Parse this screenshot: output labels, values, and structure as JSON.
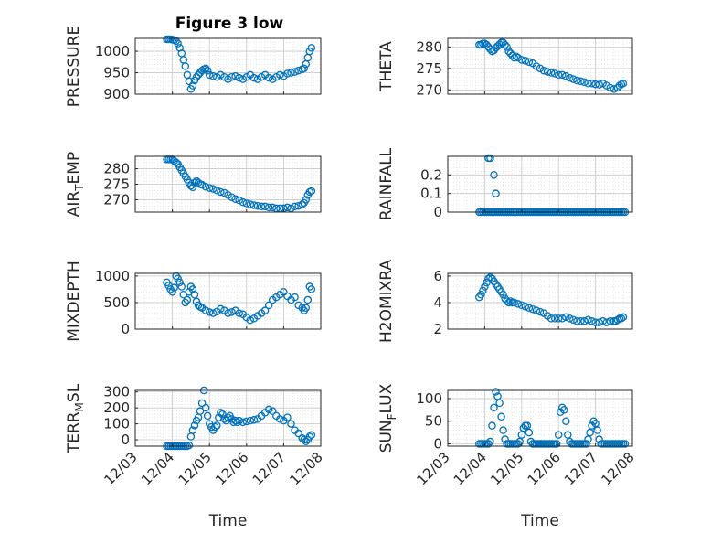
{
  "figure": {
    "title": "Figure 3 low",
    "marker_color": "#0072bd",
    "grid": true,
    "minor_grid": true,
    "x_tick_labels": [
      "12/03",
      "12/04",
      "12/05",
      "12/06",
      "12/07",
      "12/08"
    ],
    "x_axis_label": "Time"
  },
  "chart_data": [
    {
      "type": "scatter",
      "id": "pressure",
      "ylabel": "PRESSURE",
      "xlim": [
        3,
        8
      ],
      "ylim": [
        900,
        1030
      ],
      "yticks": [
        900,
        950,
        1000
      ],
      "ytick_labels": [
        "900",
        "950",
        "1000"
      ],
      "x": [
        3.85,
        3.9,
        3.95,
        4.0,
        4.05,
        4.1,
        4.15,
        4.2,
        4.25,
        4.3,
        4.35,
        4.4,
        4.45,
        4.5,
        4.55,
        4.6,
        4.65,
        4.7,
        4.75,
        4.8,
        4.85,
        4.9,
        4.95,
        5.0,
        5.1,
        5.2,
        5.3,
        5.4,
        5.5,
        5.6,
        5.7,
        5.8,
        5.9,
        6.0,
        6.1,
        6.2,
        6.3,
        6.4,
        6.5,
        6.6,
        6.7,
        6.8,
        6.9,
        7.0,
        7.1,
        7.2,
        7.3,
        7.4,
        7.5,
        7.55,
        7.6,
        7.65,
        7.7,
        7.75
      ],
      "y": [
        1028,
        1028,
        1028,
        1027,
        1026,
        1024,
        1018,
        1008,
        995,
        980,
        965,
        945,
        930,
        912,
        920,
        932,
        940,
        945,
        950,
        955,
        958,
        960,
        955,
        945,
        942,
        940,
        945,
        940,
        935,
        940,
        942,
        938,
        935,
        940,
        945,
        938,
        935,
        940,
        945,
        938,
        935,
        940,
        945,
        942,
        948,
        950,
        952,
        955,
        958,
        960,
        970,
        985,
        1000,
        1008
      ]
    },
    {
      "type": "scatter",
      "id": "theta",
      "ylabel": "THETA",
      "xlim": [
        3,
        8
      ],
      "ylim": [
        269,
        282
      ],
      "yticks": [
        270,
        275,
        280
      ],
      "ytick_labels": [
        "270",
        "275",
        "280"
      ],
      "x": [
        3.85,
        3.9,
        3.95,
        4.0,
        4.05,
        4.1,
        4.15,
        4.2,
        4.25,
        4.3,
        4.35,
        4.4,
        4.45,
        4.5,
        4.55,
        4.6,
        4.65,
        4.7,
        4.75,
        4.8,
        4.85,
        4.9,
        5.0,
        5.1,
        5.2,
        5.3,
        5.4,
        5.5,
        5.6,
        5.7,
        5.8,
        5.9,
        6.0,
        6.1,
        6.2,
        6.3,
        6.4,
        6.5,
        6.6,
        6.7,
        6.8,
        6.9,
        7.0,
        7.1,
        7.2,
        7.3,
        7.4,
        7.5,
        7.6,
        7.65,
        7.7,
        7.75
      ],
      "y": [
        280.5,
        280.5,
        280.8,
        280.8,
        280.5,
        280,
        279.5,
        279,
        279.2,
        279.8,
        280.2,
        280.6,
        281,
        281,
        280.5,
        280,
        279,
        278.5,
        278,
        277.5,
        277.8,
        277.5,
        277,
        276.8,
        276.5,
        276.2,
        275.5,
        275,
        274.5,
        274.2,
        274,
        273.8,
        273.5,
        273.5,
        273.2,
        272.8,
        272.5,
        272.2,
        272,
        271.8,
        271.5,
        271.5,
        271.3,
        271.2,
        271.5,
        271,
        270.5,
        270.2,
        270.5,
        271,
        271.3,
        271.5
      ]
    },
    {
      "type": "scatter",
      "id": "air-temp",
      "ylabel": "AIR",
      "ylabel_sub": "T",
      "ylabel_suffix": "EMP",
      "xlim": [
        3,
        8
      ],
      "ylim": [
        266,
        284
      ],
      "yticks": [
        270,
        275,
        280
      ],
      "ytick_labels": [
        "270",
        "275",
        "280"
      ],
      "x": [
        3.85,
        3.9,
        3.95,
        4.0,
        4.05,
        4.1,
        4.15,
        4.2,
        4.25,
        4.3,
        4.35,
        4.4,
        4.45,
        4.5,
        4.55,
        4.6,
        4.65,
        4.7,
        4.75,
        4.8,
        4.9,
        5.0,
        5.1,
        5.2,
        5.3,
        5.4,
        5.5,
        5.6,
        5.7,
        5.8,
        5.9,
        6.0,
        6.1,
        6.2,
        6.3,
        6.4,
        6.5,
        6.6,
        6.7,
        6.8,
        6.9,
        7.0,
        7.1,
        7.2,
        7.3,
        7.4,
        7.5,
        7.55,
        7.6,
        7.65,
        7.7,
        7.75
      ],
      "y": [
        283,
        283,
        283,
        283,
        282.5,
        282,
        281.5,
        280.5,
        279.5,
        278.5,
        277.5,
        276.5,
        275.5,
        274.5,
        274,
        275.5,
        276,
        275.5,
        275,
        274.8,
        274.2,
        273.8,
        273.5,
        273,
        272.5,
        272.2,
        271.5,
        270.8,
        270.2,
        269.8,
        269.2,
        268.8,
        268.5,
        268.2,
        268,
        267.8,
        267.8,
        267.5,
        267.5,
        267.2,
        267.2,
        267.2,
        267.5,
        267.2,
        267.8,
        268,
        268.5,
        269,
        270,
        271.5,
        272.5,
        272.8
      ]
    },
    {
      "type": "scatter",
      "id": "rainfall",
      "ylabel": "RAINFALL",
      "xlim": [
        3,
        8
      ],
      "ylim": [
        0,
        0.3
      ],
      "yticks": [
        0,
        0.1,
        0.2
      ],
      "ytick_labels": [
        "0",
        "0.1",
        "0.2"
      ],
      "x": [
        3.85,
        3.9,
        3.95,
        4.0,
        4.05,
        4.1,
        4.15,
        4.2,
        4.25,
        4.3,
        4.35,
        4.4,
        4.45,
        4.5,
        4.55,
        4.6,
        4.65,
        4.7,
        4.75,
        4.8,
        4.85,
        4.9,
        4.95,
        5.0,
        5.05,
        5.1,
        5.15,
        5.2,
        5.25,
        5.3,
        5.35,
        5.4,
        5.45,
        5.5,
        5.55,
        5.6,
        5.65,
        5.7,
        5.75,
        5.8,
        5.85,
        5.9,
        5.95,
        6.0,
        6.05,
        6.1,
        6.15,
        6.2,
        6.25,
        6.3,
        6.35,
        6.4,
        6.45,
        6.5,
        6.55,
        6.6,
        6.65,
        6.7,
        6.75,
        6.8,
        6.85,
        6.9,
        6.95,
        7.0,
        7.05,
        7.1,
        7.15,
        7.2,
        7.25,
        7.3,
        7.35,
        7.4,
        7.45,
        7.5,
        7.55,
        7.6,
        7.65,
        7.7,
        7.75,
        7.8,
        4.1,
        4.15,
        4.25,
        4.3
      ],
      "y": [
        0,
        0,
        0,
        0,
        0,
        0,
        0,
        0,
        0,
        0,
        0,
        0,
        0,
        0,
        0,
        0,
        0,
        0,
        0,
        0,
        0,
        0,
        0,
        0,
        0,
        0,
        0,
        0,
        0,
        0,
        0,
        0,
        0,
        0,
        0,
        0,
        0,
        0,
        0,
        0,
        0,
        0,
        0,
        0,
        0,
        0,
        0,
        0,
        0,
        0,
        0,
        0,
        0,
        0,
        0,
        0,
        0,
        0,
        0,
        0,
        0,
        0,
        0,
        0,
        0,
        0,
        0,
        0,
        0,
        0,
        0,
        0,
        0,
        0,
        0,
        0,
        0,
        0,
        0,
        0,
        0.29,
        0.29,
        0.2,
        0.1
      ]
    },
    {
      "type": "scatter",
      "id": "mixdepth",
      "ylabel": "MIXDEPTH",
      "xlim": [
        3,
        8
      ],
      "ylim": [
        0,
        1050
      ],
      "yticks": [
        0,
        500,
        1000
      ],
      "ytick_labels": [
        "0",
        "500",
        "1000"
      ],
      "x": [
        3.85,
        3.9,
        3.95,
        4.0,
        4.05,
        4.1,
        4.15,
        4.2,
        4.25,
        4.3,
        4.35,
        4.4,
        4.45,
        4.5,
        4.55,
        4.6,
        4.65,
        4.7,
        4.75,
        4.8,
        4.9,
        5.0,
        5.1,
        5.2,
        5.3,
        5.4,
        5.5,
        5.6,
        5.7,
        5.8,
        5.9,
        6.0,
        6.1,
        6.2,
        6.3,
        6.4,
        6.5,
        6.6,
        6.7,
        6.8,
        6.9,
        7.0,
        7.1,
        7.2,
        7.3,
        7.4,
        7.5,
        7.55,
        7.6,
        7.65,
        7.7,
        7.75
      ],
      "y": [
        880,
        820,
        750,
        700,
        780,
        1000,
        950,
        880,
        800,
        650,
        500,
        550,
        700,
        800,
        750,
        650,
        520,
        450,
        420,
        400,
        350,
        320,
        300,
        330,
        380,
        350,
        300,
        320,
        350,
        300,
        280,
        220,
        170,
        200,
        250,
        300,
        350,
        450,
        550,
        600,
        650,
        700,
        620,
        550,
        600,
        450,
        400,
        350,
        400,
        550,
        800,
        750
      ]
    },
    {
      "type": "scatter",
      "id": "h2o-mixing-ratio",
      "ylabel": "H2OMIXRA",
      "xlim": [
        3,
        8
      ],
      "ylim": [
        2,
        6.2
      ],
      "yticks": [
        2,
        4,
        6
      ],
      "ytick_labels": [
        "2",
        "4",
        "6"
      ],
      "x": [
        3.85,
        3.9,
        3.95,
        4.0,
        4.05,
        4.1,
        4.15,
        4.2,
        4.25,
        4.3,
        4.35,
        4.4,
        4.45,
        4.5,
        4.55,
        4.6,
        4.65,
        4.7,
        4.75,
        4.8,
        4.9,
        5.0,
        5.1,
        5.2,
        5.3,
        5.4,
        5.5,
        5.6,
        5.7,
        5.8,
        5.9,
        6.0,
        6.1,
        6.2,
        6.3,
        6.4,
        6.5,
        6.6,
        6.7,
        6.8,
        6.9,
        7.0,
        7.1,
        7.2,
        7.3,
        7.4,
        7.5,
        7.55,
        7.6,
        7.65,
        7.7,
        7.75
      ],
      "y": [
        4.4,
        4.6,
        4.9,
        5.2,
        5.5,
        5.8,
        5.9,
        5.8,
        5.6,
        5.4,
        5.2,
        5.0,
        4.8,
        4.6,
        4.3,
        4.1,
        4.0,
        4.1,
        4.0,
        4.0,
        3.9,
        3.8,
        3.7,
        3.6,
        3.5,
        3.4,
        3.3,
        3.2,
        3.0,
        2.8,
        2.8,
        2.8,
        2.8,
        2.9,
        2.8,
        2.7,
        2.6,
        2.6,
        2.6,
        2.7,
        2.6,
        2.5,
        2.5,
        2.6,
        2.5,
        2.6,
        2.6,
        2.6,
        2.7,
        2.8,
        2.8,
        2.9
      ]
    },
    {
      "type": "scatter",
      "id": "terrain-msl",
      "ylabel": "TERR",
      "ylabel_sub": "M",
      "ylabel_suffix": "SL",
      "xlim": [
        3,
        8
      ],
      "ylim": [
        -40,
        310
      ],
      "yticks": [
        0,
        100,
        200,
        300
      ],
      "ytick_labels": [
        "0",
        "100",
        "200",
        "300"
      ],
      "x": [
        3.85,
        3.9,
        3.95,
        4.0,
        4.05,
        4.1,
        4.15,
        4.2,
        4.25,
        4.3,
        4.35,
        4.4,
        4.45,
        4.5,
        4.55,
        4.6,
        4.65,
        4.7,
        4.75,
        4.8,
        4.85,
        4.9,
        4.95,
        5.0,
        5.05,
        5.1,
        5.15,
        5.2,
        5.25,
        5.3,
        5.35,
        5.4,
        5.45,
        5.5,
        5.55,
        5.6,
        5.65,
        5.7,
        5.75,
        5.8,
        5.9,
        6.0,
        6.1,
        6.2,
        6.3,
        6.4,
        6.5,
        6.6,
        6.7,
        6.8,
        6.9,
        7.0,
        7.1,
        7.2,
        7.3,
        7.4,
        7.5,
        7.55,
        7.6,
        7.65,
        7.7,
        7.75
      ],
      "y": [
        -40,
        -40,
        -40,
        -40,
        -40,
        -40,
        -40,
        -40,
        -40,
        -40,
        -40,
        -40,
        -35,
        20,
        60,
        90,
        120,
        140,
        180,
        230,
        310,
        200,
        150,
        100,
        80,
        60,
        80,
        90,
        140,
        170,
        160,
        130,
        120,
        140,
        150,
        130,
        110,
        120,
        110,
        120,
        110,
        115,
        120,
        125,
        130,
        150,
        170,
        190,
        180,
        150,
        130,
        120,
        140,
        100,
        60,
        40,
        10,
        0,
        -10,
        0,
        20,
        30
      ]
    },
    {
      "type": "scatter",
      "id": "sun-flux",
      "ylabel": "SUN",
      "ylabel_sub": "F",
      "ylabel_suffix": "LUX",
      "xlim": [
        3,
        8
      ],
      "ylim": [
        -5,
        118
      ],
      "yticks": [
        0,
        50,
        100
      ],
      "ytick_labels": [
        "0",
        "50",
        "100"
      ],
      "x": [
        3.85,
        3.9,
        3.95,
        4.0,
        4.05,
        4.1,
        4.15,
        4.2,
        4.25,
        4.3,
        4.35,
        4.4,
        4.45,
        4.5,
        4.55,
        4.6,
        4.65,
        4.7,
        4.75,
        4.8,
        4.85,
        4.9,
        4.95,
        5.0,
        5.05,
        5.1,
        5.15,
        5.2,
        5.25,
        5.3,
        5.35,
        5.4,
        5.45,
        5.5,
        5.55,
        5.6,
        5.65,
        5.7,
        5.75,
        5.8,
        5.85,
        5.9,
        5.95,
        6.0,
        6.05,
        6.1,
        6.15,
        6.2,
        6.25,
        6.3,
        6.35,
        6.4,
        6.45,
        6.5,
        6.55,
        6.6,
        6.65,
        6.7,
        6.75,
        6.8,
        6.85,
        6.9,
        6.95,
        7.0,
        7.05,
        7.1,
        7.15,
        7.2,
        7.25,
        7.3,
        7.35,
        7.4,
        7.45,
        7.5,
        7.55,
        7.6,
        7.65,
        7.7,
        7.75,
        7.8
      ],
      "y": [
        0,
        0,
        0,
        0,
        0,
        0,
        5,
        40,
        80,
        115,
        105,
        90,
        60,
        30,
        10,
        0,
        0,
        0,
        0,
        0,
        0,
        0,
        5,
        20,
        35,
        40,
        40,
        25,
        5,
        0,
        0,
        0,
        0,
        0,
        0,
        0,
        0,
        0,
        0,
        0,
        0,
        0,
        0,
        20,
        70,
        80,
        75,
        50,
        20,
        5,
        0,
        0,
        0,
        0,
        0,
        0,
        0,
        0,
        0,
        10,
        25,
        40,
        50,
        45,
        30,
        10,
        0,
        0,
        0,
        0,
        0,
        0,
        0,
        0,
        0,
        0,
        0,
        0,
        0,
        0
      ]
    }
  ]
}
